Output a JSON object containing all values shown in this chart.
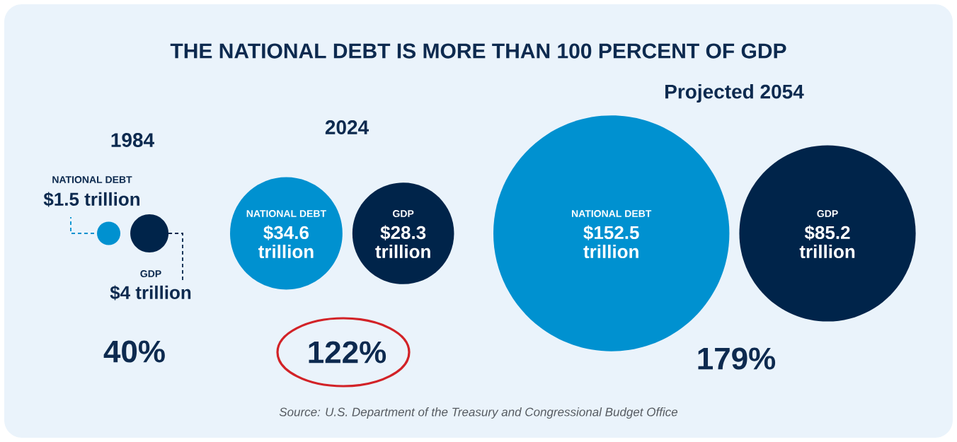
{
  "chart_data": {
    "type": "other",
    "title": "THE NATIONAL DEBT IS MORE THAN 100 PERCENT OF GDP",
    "categories": [
      "1984",
      "2024",
      "Projected 2054"
    ],
    "series": [
      {
        "name": "NATIONAL DEBT",
        "color": "#0091d0",
        "values": [
          1.5,
          34.6,
          152.5
        ],
        "value_labels": [
          "$1.5 trillion",
          "$34.6 trillion",
          "$152.5 trillion"
        ]
      },
      {
        "name": "GDP",
        "color": "#00244a",
        "values": [
          4,
          28.3,
          85.2
        ],
        "value_labels": [
          "$4 trillion",
          "$28.3 trillion",
          "$85.2 trillion"
        ]
      }
    ],
    "annotations": [
      "40%",
      "122%",
      "179%",
      "Source: U.S. Department of the Treasury and Congressional Budget Office"
    ]
  }
}
